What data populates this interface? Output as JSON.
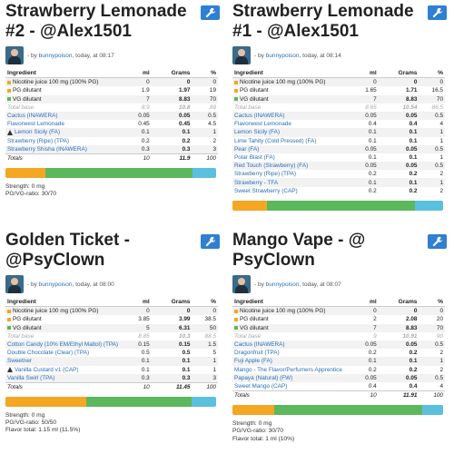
{
  "colors": {
    "nic": "#f5a623",
    "pg": "#f5a623",
    "vg": "#5cb85c",
    "flavor": "#5bc0de",
    "button": "#2f7fd2",
    "link": "#2a6fb8"
  },
  "by_label": "by",
  "headers": {
    "ingredient": "Ingredient",
    "ml": "ml",
    "grams": "Grams",
    "pct": "%"
  },
  "recipes": [
    {
      "title": "Strawberry Lemonade #2 - @Alex1501",
      "author": "bunnypoison",
      "time": ", today, at 08:17",
      "rows": [
        {
          "name": "Nicotine juice 100 mg (100% PG)",
          "marker": "nic",
          "ml": "0",
          "g": "0",
          "pct": "0",
          "kind": "base"
        },
        {
          "name": "PG dilutant",
          "marker": "pg",
          "ml": "1.9",
          "g": "1.97",
          "pct": "19",
          "kind": "base"
        },
        {
          "name": "VG dilutant",
          "marker": "vg",
          "ml": "7",
          "g": "8.83",
          "pct": "70",
          "kind": "base"
        },
        {
          "name": "Total base",
          "ml": "8.9",
          "g": "10.8",
          "pct": "89",
          "kind": "totalbase"
        },
        {
          "name": "Cactus (INAWERA)",
          "ml": "0.05",
          "g": "0.05",
          "pct": "0.5",
          "kind": "flavor"
        },
        {
          "name": "Flavorwest Lemonade",
          "ml": "0.45",
          "g": "0.45",
          "pct": "4.5",
          "kind": "flavor"
        },
        {
          "name": "Lemon Sicily (FA)",
          "warn": true,
          "ml": "0.1",
          "g": "0.1",
          "pct": "1",
          "kind": "flavor"
        },
        {
          "name": "Strawberry (Ripe) (TPA)",
          "ml": "0.2",
          "g": "0.2",
          "pct": "2",
          "kind": "flavor"
        },
        {
          "name": "Strawberry Shisha (INAWERA)",
          "ml": "0.3",
          "g": "0.3",
          "pct": "3",
          "kind": "flavor"
        },
        {
          "name": "Totals",
          "ml": "10",
          "g": "11.9",
          "pct": "100",
          "kind": "totals"
        }
      ],
      "bar_fractions": {
        "pg": 0.19,
        "vg": 0.7,
        "flavor": 0.11
      },
      "info": [
        "Strength: 0 mg",
        "PG/VG-ratio: 30/70"
      ]
    },
    {
      "title": "Strawberry Lemonade #1 - @Alex1501",
      "author": "bunnypoison",
      "time": ", today, at 08:14",
      "rows": [
        {
          "name": "Nicotine juice 100 mg (100% PG)",
          "marker": "nic",
          "ml": "0",
          "g": "0",
          "pct": "0",
          "kind": "base"
        },
        {
          "name": "PG dilutant",
          "marker": "pg",
          "ml": "1.65",
          "g": "1.71",
          "pct": "16.5",
          "kind": "base"
        },
        {
          "name": "VG dilutant",
          "marker": "vg",
          "ml": "7",
          "g": "8.83",
          "pct": "70",
          "kind": "base"
        },
        {
          "name": "Total base",
          "ml": "8.65",
          "g": "10.54",
          "pct": "86.5",
          "kind": "totalbase"
        },
        {
          "name": "Cactus (INAWERA)",
          "ml": "0.05",
          "g": "0.05",
          "pct": "0.5",
          "kind": "flavor"
        },
        {
          "name": "Flavorwest Lemonade",
          "ml": "0.4",
          "g": "0.4",
          "pct": "4",
          "kind": "flavor"
        },
        {
          "name": "Lemon Sicily (FA)",
          "ml": "0.1",
          "g": "0.1",
          "pct": "1",
          "kind": "flavor"
        },
        {
          "name": "Lime Tahity (Cold Pressed) (FA)",
          "ml": "0.1",
          "g": "0.1",
          "pct": "1",
          "kind": "flavor"
        },
        {
          "name": "Pear (FA)",
          "ml": "0.05",
          "g": "0.05",
          "pct": "0.5",
          "kind": "flavor"
        },
        {
          "name": "Polar Blast (FA)",
          "ml": "0.1",
          "g": "0.1",
          "pct": "1",
          "kind": "flavor"
        },
        {
          "name": "Red Touch (Strawberry) (FA)",
          "ml": "0.05",
          "g": "0.05",
          "pct": "0.5",
          "kind": "flavor"
        },
        {
          "name": "Strawberry (Ripe) (TPA)",
          "ml": "0.2",
          "g": "0.2",
          "pct": "2",
          "kind": "flavor"
        },
        {
          "name": "Strawberry - TFA",
          "ml": "0.1",
          "g": "0.1",
          "pct": "1",
          "kind": "flavor"
        },
        {
          "name": "Sweet Strawberry (CAP)",
          "ml": "0.2",
          "g": "0.2",
          "pct": "2",
          "kind": "flavor"
        }
      ],
      "bar_fractions": {
        "pg": 0.165,
        "vg": 0.7,
        "flavor": 0.135
      },
      "info": []
    },
    {
      "title": "Golden Ticket - @PsyClown",
      "author": "bunnypoison",
      "time": ", today, at 08:00",
      "rows": [
        {
          "name": "Nicotine juice 100 mg (100% PG)",
          "marker": "nic",
          "ml": "0",
          "g": "0",
          "pct": "0",
          "kind": "base"
        },
        {
          "name": "PG dilutant",
          "marker": "pg",
          "ml": "3.85",
          "g": "3.99",
          "pct": "38.5",
          "kind": "base"
        },
        {
          "name": "VG dilutant",
          "marker": "vg",
          "ml": "5",
          "g": "6.31",
          "pct": "50",
          "kind": "base"
        },
        {
          "name": "Total base",
          "ml": "8.85",
          "g": "10.3",
          "pct": "88.5",
          "kind": "totalbase"
        },
        {
          "name": "Cotton Candy (10% EM/Ethyl Maltol) (TPA)",
          "ml": "0.15",
          "g": "0.15",
          "pct": "1.5",
          "kind": "flavor"
        },
        {
          "name": "Double Chocolate (Clear) (TPA)",
          "ml": "0.5",
          "g": "0.5",
          "pct": "5",
          "kind": "flavor"
        },
        {
          "name": "Sweetner",
          "ml": "0.1",
          "g": "0.1",
          "pct": "1",
          "kind": "flavor"
        },
        {
          "name": "Vanilla Custard v1 (CAP)",
          "warn": true,
          "ml": "0.1",
          "g": "0.1",
          "pct": "1",
          "kind": "flavor"
        },
        {
          "name": "Vanilla Swirl (TPA)",
          "ml": "0.3",
          "g": "0.3",
          "pct": "3",
          "kind": "flavor"
        },
        {
          "name": "Totals",
          "ml": "10",
          "g": "11.45",
          "pct": "100",
          "kind": "totals"
        }
      ],
      "bar_fractions": {
        "pg": 0.385,
        "vg": 0.5,
        "flavor": 0.115
      },
      "info": [
        "Strength: 0 mg",
        "PG/VG-ratio: 50/50",
        "Flavor total: 1.15 ml (11.5%)"
      ]
    },
    {
      "title": "Mango Vape - @ PsyClown",
      "author": "bunnypoison",
      "time": ", today, at 08:07",
      "rows": [
        {
          "name": "Nicotine juice 100 mg (100% PG)",
          "marker": "nic",
          "ml": "0",
          "g": "0",
          "pct": "0",
          "kind": "base"
        },
        {
          "name": "PG dilutant",
          "marker": "pg",
          "ml": "2",
          "g": "2.08",
          "pct": "20",
          "kind": "base"
        },
        {
          "name": "VG dilutant",
          "marker": "vg",
          "ml": "7",
          "g": "8.83",
          "pct": "70",
          "kind": "base"
        },
        {
          "name": "Total base",
          "ml": "9",
          "g": "10.91",
          "pct": "90",
          "kind": "totalbase"
        },
        {
          "name": "Cactus (INAWERA)",
          "ml": "0.05",
          "g": "0.05",
          "pct": "0.5",
          "kind": "flavor"
        },
        {
          "name": "Dragonfruit (TPA)",
          "ml": "0.2",
          "g": "0.2",
          "pct": "2",
          "kind": "flavor"
        },
        {
          "name": "Fuji Apple (FA)",
          "ml": "0.1",
          "g": "0.1",
          "pct": "1",
          "kind": "flavor"
        },
        {
          "name": "Mango - The Flavor/Perfumers Apprentice",
          "ml": "0.2",
          "g": "0.2",
          "pct": "2",
          "kind": "flavor"
        },
        {
          "name": "Papaya (Natural) (FW)",
          "ml": "0.05",
          "g": "0.05",
          "pct": "0.5",
          "kind": "flavor"
        },
        {
          "name": "Sweet Mango (CAP)",
          "ml": "0.4",
          "g": "0.4",
          "pct": "4",
          "kind": "flavor"
        },
        {
          "name": "Totals",
          "ml": "10",
          "g": "11.91",
          "pct": "100",
          "kind": "totals"
        }
      ],
      "bar_fractions": {
        "pg": 0.2,
        "vg": 0.7,
        "flavor": 0.1
      },
      "info": [
        "Strength: 0 mg",
        "PG/VG-ratio: 30/70",
        "Flavor total: 1 ml (10%)"
      ]
    }
  ]
}
